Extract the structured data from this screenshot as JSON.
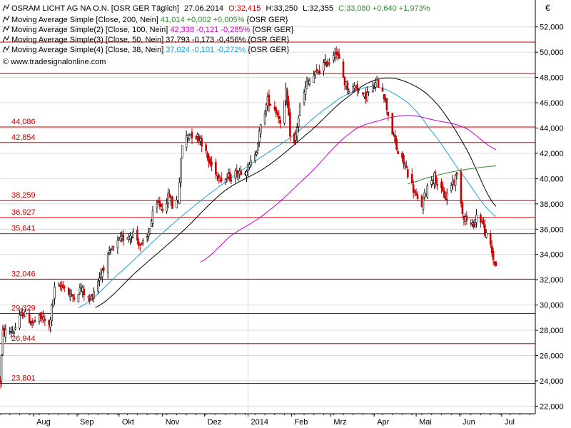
{
  "header": {
    "title": "OSRAM LICHT AG NA O.N. [OSR GER  Täglich]",
    "date": "27.06.2014",
    "open": "O:32,415",
    "high": "H:33,250",
    "low": "L:32,355",
    "close": "C:33,080 +0,640 +1,973%"
  },
  "indicators": [
    {
      "label": "Moving Average Simple [Close, 200, Nein]",
      "value": "41,014 +0,002 +0,005%",
      "suffix": "{OSR GER}",
      "color": "#2e8b2e"
    },
    {
      "label": "Moving Average Simple(2) [Close, 100, Nein]",
      "value": "42,338 -0,121 -0,285%",
      "suffix": "{OSR GER}",
      "color": "#cc00cc"
    },
    {
      "label": "Moving Average Simple(3) [Close, 50, Nein]",
      "value": "37,793 -0,173 -0,456%",
      "suffix": "{OSR GER}",
      "color": "#000000"
    },
    {
      "label": "Moving Average Simple(4) [Close, 38, Nein]",
      "value": "37,024 -0,101 -0,272%",
      "suffix": "{OSR GER}",
      "color": "#1aa3d6"
    }
  ],
  "watermark": "© www.tradesignalonline.com",
  "currency_symbol": "€",
  "colors": {
    "up": "#000000",
    "down": "#cc0000",
    "sr_line": "#cc0000",
    "sr_label": "#cc0000",
    "grid": "#d9d9d9",
    "text": "#000000",
    "axis": "#000000"
  },
  "chart_data": {
    "type": "candlestick",
    "y_ticks": [
      "52,000",
      "50,000",
      "48,000",
      "46,000",
      "44,000",
      "42,000",
      "40,000",
      "38,000",
      "36,000",
      "34,000",
      "32,000",
      "30,000",
      "28,000",
      "26,000",
      "24,000",
      "22,000"
    ],
    "ylim": [
      21.4,
      53.0
    ],
    "x_ticks": [
      "Aug",
      "Sep",
      "Okt",
      "Nov",
      "Dez",
      "2014",
      "Feb",
      "Mrz",
      "Apr",
      "Mai",
      "Jun",
      "Jul"
    ],
    "x_tick_dates": [
      "2013-08-01",
      "2013-09-01",
      "2013-10-01",
      "2013-11-01",
      "2013-12-01",
      "2014-01-01",
      "2014-02-01",
      "2014-03-01",
      "2014-04-01",
      "2014-05-01",
      "2014-06-01",
      "2014-07-01"
    ],
    "x_range": [
      "2013-07-08",
      "2014-07-25"
    ],
    "support_resistance": [
      {
        "value": 50.8,
        "label": ""
      },
      {
        "value": 48.3,
        "label": ""
      },
      {
        "value": 44.086,
        "label": "44,086"
      },
      {
        "value": 42.854,
        "label": "42,854"
      },
      {
        "value": 38.259,
        "label": "38,259"
      },
      {
        "value": 36.927,
        "label": "36,927"
      },
      {
        "value": 35.641,
        "label": "35,641"
      },
      {
        "value": 32.046,
        "label": "32,046"
      },
      {
        "value": 29.329,
        "label": "29,329"
      },
      {
        "value": 26.944,
        "label": "26,944"
      },
      {
        "value": 23.801,
        "label": "23,801"
      }
    ],
    "price_path": [
      [
        "2013-07-08",
        24.0
      ],
      [
        "2013-07-10",
        27.8
      ],
      [
        "2013-07-18",
        28.0
      ],
      [
        "2013-07-24",
        29.4
      ],
      [
        "2013-07-31",
        28.6
      ],
      [
        "2013-08-07",
        29.0
      ],
      [
        "2013-08-12",
        28.3
      ],
      [
        "2013-08-16",
        31.2
      ],
      [
        "2013-08-22",
        31.6
      ],
      [
        "2013-08-28",
        30.6
      ],
      [
        "2013-09-04",
        31.3
      ],
      [
        "2013-09-10",
        30.3
      ],
      [
        "2013-09-16",
        32.0
      ],
      [
        "2013-09-22",
        33.6
      ],
      [
        "2013-09-29",
        34.8
      ],
      [
        "2013-10-05",
        35.4
      ],
      [
        "2013-10-11",
        35.7
      ],
      [
        "2013-10-17",
        34.6
      ],
      [
        "2013-10-21",
        35.3
      ],
      [
        "2013-10-25",
        37.1
      ],
      [
        "2013-10-29",
        38.0
      ],
      [
        "2013-11-01",
        37.7
      ],
      [
        "2013-11-06",
        38.7
      ],
      [
        "2013-11-08",
        37.8
      ],
      [
        "2013-11-12",
        38.4
      ],
      [
        "2013-11-15",
        42.7
      ],
      [
        "2013-11-20",
        43.6
      ],
      [
        "2013-11-28",
        43.2
      ],
      [
        "2013-12-04",
        41.3
      ],
      [
        "2013-12-09",
        40.6
      ],
      [
        "2013-12-14",
        39.9
      ],
      [
        "2013-12-20",
        40.2
      ],
      [
        "2013-12-26",
        40.6
      ],
      [
        "2014-01-02",
        40.9
      ],
      [
        "2014-01-07",
        42.4
      ],
      [
        "2014-01-11",
        44.6
      ],
      [
        "2014-01-15",
        46.2
      ],
      [
        "2014-01-20",
        45.6
      ],
      [
        "2014-01-25",
        44.4
      ],
      [
        "2014-01-28",
        46.8
      ],
      [
        "2014-01-31",
        43.6
      ],
      [
        "2014-02-03",
        42.7
      ],
      [
        "2014-02-07",
        45.6
      ],
      [
        "2014-02-12",
        47.5
      ],
      [
        "2014-02-18",
        48.2
      ],
      [
        "2014-02-24",
        49.0
      ],
      [
        "2014-03-01",
        49.4
      ],
      [
        "2014-03-04",
        50.2
      ],
      [
        "2014-03-07",
        49.3
      ],
      [
        "2014-03-11",
        47.6
      ],
      [
        "2014-03-15",
        46.9
      ],
      [
        "2014-03-19",
        47.4
      ],
      [
        "2014-03-24",
        46.4
      ],
      [
        "2014-03-30",
        47.0
      ],
      [
        "2014-04-03",
        47.6
      ],
      [
        "2014-04-07",
        47.1
      ],
      [
        "2014-04-11",
        45.1
      ],
      [
        "2014-04-15",
        43.2
      ],
      [
        "2014-04-19",
        41.6
      ],
      [
        "2014-04-23",
        41.1
      ],
      [
        "2014-04-27",
        39.8
      ],
      [
        "2014-04-30",
        38.8
      ],
      [
        "2014-05-04",
        37.6
      ],
      [
        "2014-05-07",
        38.6
      ],
      [
        "2014-05-10",
        39.8
      ],
      [
        "2014-05-14",
        40.2
      ],
      [
        "2014-05-18",
        39.1
      ],
      [
        "2014-05-22",
        38.5
      ],
      [
        "2014-05-26",
        39.6
      ],
      [
        "2014-05-31",
        40.4
      ],
      [
        "2014-06-03",
        37.3
      ],
      [
        "2014-06-06",
        36.7
      ],
      [
        "2014-06-10",
        36.2
      ],
      [
        "2014-06-13",
        37.1
      ],
      [
        "2014-06-17",
        36.6
      ],
      [
        "2014-06-20",
        35.4
      ],
      [
        "2014-06-23",
        34.6
      ],
      [
        "2014-06-25",
        33.6
      ],
      [
        "2014-06-27",
        33.08
      ]
    ],
    "moving_averages": [
      {
        "name": "Moving Average Simple(4) [Close, 38, Nein]",
        "color": "#1aa3d6",
        "points": [
          [
            "2013-09-02",
            29.8
          ],
          [
            "2013-10-01",
            32.5
          ],
          [
            "2013-11-01",
            35.7
          ],
          [
            "2013-12-01",
            38.5
          ],
          [
            "2014-01-01",
            41.0
          ],
          [
            "2014-02-01",
            43.3
          ],
          [
            "2014-03-01",
            45.8
          ],
          [
            "2014-03-20",
            47.0
          ],
          [
            "2014-04-05",
            47.2
          ],
          [
            "2014-04-25",
            46.0
          ],
          [
            "2014-05-10",
            44.0
          ],
          [
            "2014-06-01",
            40.6
          ],
          [
            "2014-06-27",
            37.0
          ]
        ]
      },
      {
        "name": "Moving Average Simple(3) [Close, 50, Nein]",
        "color": "#000000",
        "points": [
          [
            "2013-09-14",
            29.8
          ],
          [
            "2013-10-15",
            32.8
          ],
          [
            "2013-11-15",
            35.8
          ],
          [
            "2013-12-15",
            39.0
          ],
          [
            "2014-01-15",
            41.0
          ],
          [
            "2014-02-15",
            43.8
          ],
          [
            "2014-03-15",
            46.6
          ],
          [
            "2014-04-05",
            47.9
          ],
          [
            "2014-04-25",
            47.6
          ],
          [
            "2014-05-15",
            46.0
          ],
          [
            "2014-06-05",
            42.5
          ],
          [
            "2014-06-27",
            37.8
          ]
        ]
      },
      {
        "name": "Moving Average Simple(2) [Close, 100, Nein]",
        "color": "#cc00cc",
        "points": [
          [
            "2013-11-28",
            33.4
          ],
          [
            "2013-12-20",
            35.5
          ],
          [
            "2014-01-15",
            37.4
          ],
          [
            "2014-02-15",
            40.5
          ],
          [
            "2014-03-15",
            43.6
          ],
          [
            "2014-04-05",
            44.6
          ],
          [
            "2014-04-25",
            45.0
          ],
          [
            "2014-05-15",
            44.6
          ],
          [
            "2014-06-05",
            44.0
          ],
          [
            "2014-06-27",
            42.3
          ]
        ]
      },
      {
        "name": "Moving Average Simple [Close, 200, Nein]",
        "color": "#2e8b2e",
        "points": [
          [
            "2014-04-25",
            39.6
          ],
          [
            "2014-05-10",
            40.1
          ],
          [
            "2014-05-25",
            40.5
          ],
          [
            "2014-06-10",
            40.8
          ],
          [
            "2014-06-27",
            41.0
          ]
        ]
      }
    ]
  }
}
